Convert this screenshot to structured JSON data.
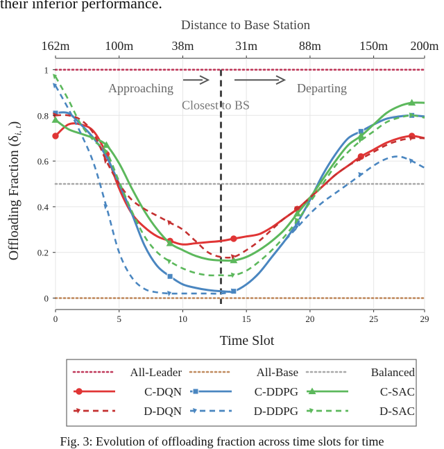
{
  "top_text": "their inferior performance.",
  "caption": "Fig. 3: Evolution of offloading fraction across time slots for time",
  "chart_data": {
    "type": "line",
    "xlabel": "Time Slot",
    "ylabel": "Offloading Fraction (δ",
    "ylabel_sub": "i, t",
    "ylabel_close": ")",
    "top_axis_title": "Distance to Base Station",
    "xlim": [
      0,
      29
    ],
    "ylim": [
      -0.05,
      1.05
    ],
    "x_ticks": [
      0,
      5,
      10,
      15,
      20,
      25,
      29
    ],
    "y_ticks": [
      0,
      0.2,
      0.4,
      0.6,
      0.8,
      1
    ],
    "y_tick_labels": [
      "0",
      "0.2",
      "0.4",
      "0.6",
      "0.8",
      "1"
    ],
    "top_ticks": [
      {
        "x": 0,
        "label": "162m"
      },
      {
        "x": 5,
        "label": "100m"
      },
      {
        "x": 10,
        "label": "38m"
      },
      {
        "x": 15,
        "label": "31m"
      },
      {
        "x": 20,
        "label": "88m"
      },
      {
        "x": 25,
        "label": "150m"
      },
      {
        "x": 29,
        "label": "200m"
      }
    ],
    "grid": true,
    "annotations": {
      "approaching": "Approaching",
      "departing": "Departing",
      "closest": "Closest to BS",
      "closest_x": 13
    },
    "legend_position": "bottom",
    "series": [
      {
        "name": "All-Leader",
        "color": "#c0395a",
        "style": "dotted",
        "marker": "none",
        "x": [
          0,
          29
        ],
        "y": [
          1,
          1
        ]
      },
      {
        "name": "All-Base",
        "color": "#c08a5e",
        "style": "dotted",
        "marker": "none",
        "x": [
          0,
          29
        ],
        "y": [
          0,
          0
        ]
      },
      {
        "name": "Balanced",
        "color": "#a8a8a8",
        "style": "dotted",
        "marker": "none",
        "x": [
          0,
          29
        ],
        "y": [
          0.5,
          0.5
        ]
      },
      {
        "name": "C-DQN",
        "color": "#e03535",
        "style": "solid",
        "marker": "circle",
        "x": [
          0,
          1,
          2,
          3,
          4,
          5,
          6,
          7,
          8,
          9,
          10,
          11,
          12,
          13,
          14,
          15,
          16,
          17,
          18,
          19,
          20,
          21,
          22,
          23,
          24,
          25,
          26,
          27,
          28,
          29
        ],
        "y": [
          0.71,
          0.76,
          0.76,
          0.73,
          0.63,
          0.48,
          0.37,
          0.31,
          0.27,
          0.25,
          0.235,
          0.24,
          0.245,
          0.25,
          0.26,
          0.27,
          0.28,
          0.31,
          0.35,
          0.39,
          0.44,
          0.49,
          0.54,
          0.58,
          0.62,
          0.65,
          0.68,
          0.7,
          0.71,
          0.7
        ],
        "marker_x": [
          0,
          4,
          9,
          14,
          19,
          24,
          28
        ]
      },
      {
        "name": "C-DDPG",
        "color": "#4a86c0",
        "style": "solid",
        "marker": "square",
        "x": [
          0,
          1,
          2,
          3,
          4,
          5,
          6,
          7,
          8,
          9,
          10,
          11,
          12,
          13,
          14,
          15,
          16,
          17,
          18,
          19,
          20,
          21,
          22,
          23,
          24,
          25,
          26,
          27,
          28,
          29
        ],
        "y": [
          0.81,
          0.81,
          0.76,
          0.7,
          0.62,
          0.5,
          0.37,
          0.23,
          0.14,
          0.095,
          0.06,
          0.045,
          0.035,
          0.03,
          0.03,
          0.06,
          0.11,
          0.18,
          0.25,
          0.33,
          0.43,
          0.54,
          0.63,
          0.7,
          0.73,
          0.76,
          0.785,
          0.795,
          0.8,
          0.795
        ],
        "marker_x": [
          0,
          9,
          14,
          19,
          24,
          28
        ]
      },
      {
        "name": "C-SAC",
        "color": "#5cb85c",
        "style": "solid",
        "marker": "triangle",
        "x": [
          0,
          1,
          2,
          3,
          4,
          5,
          6,
          7,
          8,
          9,
          10,
          11,
          12,
          13,
          14,
          15,
          16,
          17,
          18,
          19,
          20,
          21,
          22,
          23,
          24,
          25,
          26,
          27,
          28,
          29
        ],
        "y": [
          0.78,
          0.74,
          0.72,
          0.7,
          0.67,
          0.59,
          0.48,
          0.38,
          0.3,
          0.24,
          0.21,
          0.185,
          0.17,
          0.165,
          0.165,
          0.18,
          0.21,
          0.25,
          0.3,
          0.37,
          0.44,
          0.52,
          0.6,
          0.67,
          0.71,
          0.76,
          0.81,
          0.84,
          0.855,
          0.855
        ],
        "marker_x": [
          0,
          4,
          9,
          14,
          19,
          24,
          28
        ]
      },
      {
        "name": "D-DQN",
        "color": "#c43030",
        "style": "dashed",
        "marker": "half-arrow",
        "x": [
          0,
          1,
          2,
          3,
          4,
          5,
          6,
          7,
          8,
          9,
          10,
          11,
          12,
          13,
          14,
          15,
          16,
          17,
          18,
          19,
          20,
          21,
          22,
          23,
          24,
          25,
          26,
          27,
          28,
          29
        ],
        "y": [
          0.8,
          0.8,
          0.78,
          0.72,
          0.6,
          0.5,
          0.43,
          0.39,
          0.36,
          0.33,
          0.3,
          0.25,
          0.2,
          0.18,
          0.18,
          0.21,
          0.25,
          0.3,
          0.35,
          0.39,
          0.44,
          0.49,
          0.54,
          0.58,
          0.61,
          0.64,
          0.67,
          0.69,
          0.7,
          0.7
        ],
        "marker_x": [
          0,
          4,
          9,
          14,
          19,
          24,
          28
        ]
      },
      {
        "name": "D-DDPG",
        "color": "#4a86c0",
        "style": "dashed",
        "marker": "half-arrow",
        "x": [
          0,
          1,
          2,
          3,
          4,
          5,
          6,
          7,
          8,
          9,
          10,
          11,
          12,
          13,
          14,
          15,
          16,
          17,
          18,
          19,
          20,
          21,
          22,
          23,
          24,
          25,
          26,
          27,
          28,
          29
        ],
        "y": [
          0.93,
          0.83,
          0.72,
          0.59,
          0.4,
          0.2,
          0.09,
          0.04,
          0.025,
          0.02,
          0.02,
          0.02,
          0.02,
          0.02,
          0.03,
          0.06,
          0.11,
          0.18,
          0.25,
          0.31,
          0.37,
          0.42,
          0.46,
          0.5,
          0.54,
          0.58,
          0.61,
          0.62,
          0.6,
          0.57
        ],
        "marker_x": [
          0,
          4,
          9,
          14,
          19,
          24,
          28
        ]
      },
      {
        "name": "D-SAC",
        "color": "#5cb85c",
        "style": "dashed",
        "marker": "half-arrow",
        "x": [
          0,
          1,
          2,
          3,
          4,
          5,
          6,
          7,
          8,
          9,
          10,
          11,
          12,
          13,
          14,
          15,
          16,
          17,
          18,
          19,
          20,
          21,
          22,
          23,
          24,
          25,
          26,
          27,
          28,
          29
        ],
        "y": [
          0.97,
          0.87,
          0.76,
          0.69,
          0.64,
          0.51,
          0.38,
          0.27,
          0.2,
          0.16,
          0.13,
          0.11,
          0.1,
          0.1,
          0.1,
          0.12,
          0.16,
          0.21,
          0.27,
          0.34,
          0.42,
          0.5,
          0.58,
          0.64,
          0.69,
          0.73,
          0.77,
          0.79,
          0.8,
          0.79
        ],
        "marker_x": [
          0,
          4,
          9,
          14,
          19,
          24,
          28
        ]
      }
    ]
  }
}
